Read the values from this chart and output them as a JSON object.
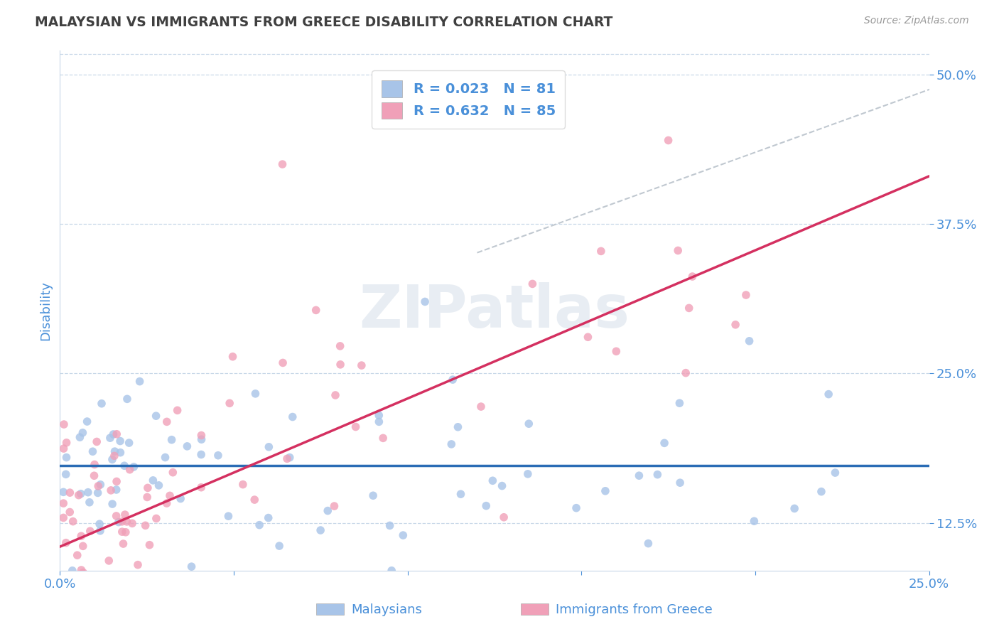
{
  "title": "MALAYSIAN VS IMMIGRANTS FROM GREECE DISABILITY CORRELATION CHART",
  "source": "Source: ZipAtlas.com",
  "ylabel": "Disability",
  "xlim": [
    0.0,
    0.25
  ],
  "ylim": [
    0.085,
    0.52
  ],
  "yticks": [
    0.125,
    0.25,
    0.375,
    0.5
  ],
  "ytick_labels": [
    "12.5%",
    "25.0%",
    "37.5%",
    "50.0%"
  ],
  "xticks": [
    0.0,
    0.05,
    0.1,
    0.15,
    0.2,
    0.25
  ],
  "xtick_labels": [
    "0.0%",
    "",
    "",
    "",
    "",
    "25.0%"
  ],
  "malaysian_color": "#a8c4e8",
  "greek_color": "#f0a0b8",
  "malaysian_line_color": "#2a6cb5",
  "greek_line_color": "#d43060",
  "diagonal_color": "#c0c8d0",
  "R_malaysian": 0.023,
  "N_malaysian": 81,
  "R_greek": 0.632,
  "N_greek": 85,
  "watermark": "ZIPatlas",
  "legend_label_1": "Malaysians",
  "legend_label_2": "Immigrants from Greece",
  "background_color": "#ffffff",
  "grid_color": "#c8d8e8",
  "title_color": "#404040",
  "axis_label_color": "#4a90d9",
  "legend_text_color": "#4a90d9",
  "mal_line_y0": 0.173,
  "mal_line_y1": 0.173,
  "gre_line_y0": 0.105,
  "gre_line_y1": 0.415
}
